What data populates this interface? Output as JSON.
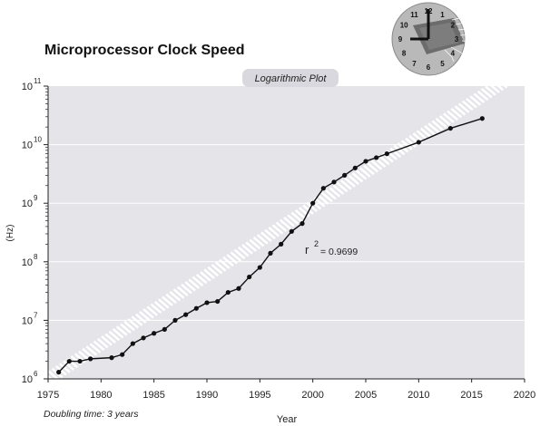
{
  "chart_data": {
    "type": "line",
    "title": "Microprocessor Clock Speed",
    "subtitle": "Logarithmic Plot",
    "xlabel": "Year",
    "ylabel": "(Hz)",
    "xlim": [
      1975,
      2020
    ],
    "ylim_log10": [
      6,
      11
    ],
    "y_scale": "log",
    "x_ticks": [
      1975,
      1980,
      1985,
      1990,
      1995,
      2000,
      2005,
      2010,
      2015,
      2020
    ],
    "y_ticks": [
      {
        "base": "10",
        "exp": "6"
      },
      {
        "base": "10",
        "exp": "7"
      },
      {
        "base": "10",
        "exp": "8"
      },
      {
        "base": "10",
        "exp": "9"
      },
      {
        "base": "10",
        "exp": "10"
      },
      {
        "base": "10",
        "exp": "11"
      }
    ],
    "grid": true,
    "series": [
      {
        "x": [
          1976,
          1977,
          1978,
          1979,
          1981,
          1982,
          1983,
          1984,
          1985,
          1986,
          1987,
          1988,
          1989,
          1990,
          1991,
          1992,
          1993,
          1994,
          1995,
          1996,
          1997,
          1998,
          1999,
          2000,
          2001,
          2002,
          2003,
          2004,
          2005,
          2006,
          2007,
          2010,
          2013,
          2016
        ],
        "y": [
          1300000.0,
          2000000.0,
          2000000.0,
          2200000.0,
          2300000.0,
          2600000.0,
          4000000.0,
          5000000.0,
          6000000.0,
          7000000.0,
          10000000.0,
          12500000.0,
          16000000.0,
          20000000.0,
          21000000.0,
          30000000.0,
          35000000.0,
          55000000.0,
          80000000.0,
          140000000.0,
          200000000.0,
          330000000.0,
          450000000.0,
          1000000000.0,
          1800000000.0,
          2300000000.0,
          3000000000.0,
          4000000000.0,
          5200000000.0,
          6000000000.0,
          7000000000.0,
          11000000000.0,
          19000000000.0,
          28000000000.0
        ]
      }
    ],
    "trend": {
      "x": [
        1975,
        2020
      ],
      "y": [
        1000000.0,
        200000000000.0
      ],
      "style": "white hatched band"
    },
    "annotation": {
      "base": "r",
      "exp": "2",
      "value": "= 0.9699"
    },
    "note": "Doubling time: 3 years",
    "colors": {
      "plot_background": "#e4e4e9",
      "line": "#111111",
      "trend": "#ffffff",
      "grid": "#ffffff"
    }
  },
  "logo": {
    "icon": "clock-chip-icon",
    "numbers": [
      "12",
      "1",
      "2",
      "3",
      "4",
      "5",
      "6",
      "7",
      "8",
      "9",
      "10",
      "11"
    ]
  }
}
